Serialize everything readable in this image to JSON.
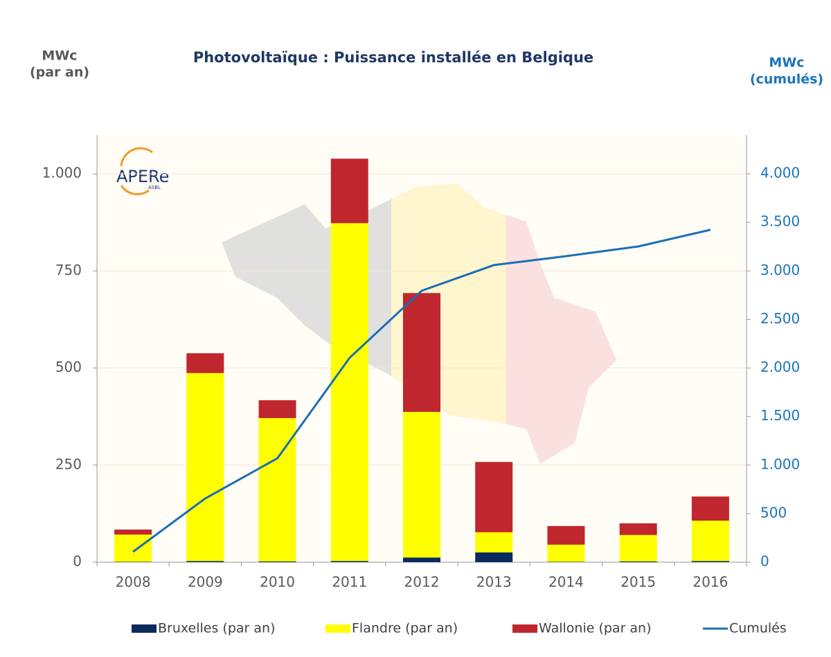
{
  "chart_data": {
    "type": "bar",
    "stacked": true,
    "title": "Photovoltaïque : Puissance installée en Belgique",
    "y_label": [
      "MWc",
      "(par an)"
    ],
    "y2_label": [
      "MWc",
      "(cumulés)"
    ],
    "logo": {
      "text": "APERe",
      "sub": "ASBL"
    },
    "categories": [
      "2008",
      "2009",
      "2010",
      "2011",
      "2012",
      "2013",
      "2014",
      "2015",
      "2016"
    ],
    "series": [
      {
        "name": "Bruxelles (par an)",
        "type": "bar",
        "color": "#0b2a5e",
        "values": [
          1,
          3,
          2,
          3,
          12,
          25,
          1,
          2,
          3
        ]
      },
      {
        "name": "Flandre (par an)",
        "type": "bar",
        "color": "#ffff00",
        "values": [
          70,
          484,
          369,
          870,
          375,
          52,
          44,
          68,
          104
        ]
      },
      {
        "name": "Wallonie (par an)",
        "type": "bar",
        "color": "#c0262d",
        "values": [
          13,
          51,
          46,
          166,
          306,
          181,
          48,
          30,
          62
        ]
      },
      {
        "name": "Cumulés",
        "type": "line",
        "axis": "y2",
        "color": "#1a6eb5",
        "values": [
          107,
          656,
          1070,
          2104,
          2796,
          3060,
          3152,
          3252,
          3424
        ]
      }
    ],
    "ylim": [
      0,
      1100
    ],
    "yticks": [
      0,
      250,
      500,
      750,
      {
        "value": 1000,
        "label": "1.000"
      }
    ],
    "y2lim": [
      0,
      4400
    ],
    "y2ticks": [
      0,
      500,
      {
        "value": 1000,
        "label": "1.000"
      },
      {
        "value": 1500,
        "label": "1.500"
      },
      {
        "value": 2000,
        "label": "2.000"
      },
      {
        "value": 2500,
        "label": "2.500"
      },
      {
        "value": 3000,
        "label": "3.000"
      },
      {
        "value": 3500,
        "label": "3.500"
      },
      {
        "value": 4000,
        "label": "4.000"
      }
    ],
    "grid": true,
    "legend": "bottom"
  }
}
